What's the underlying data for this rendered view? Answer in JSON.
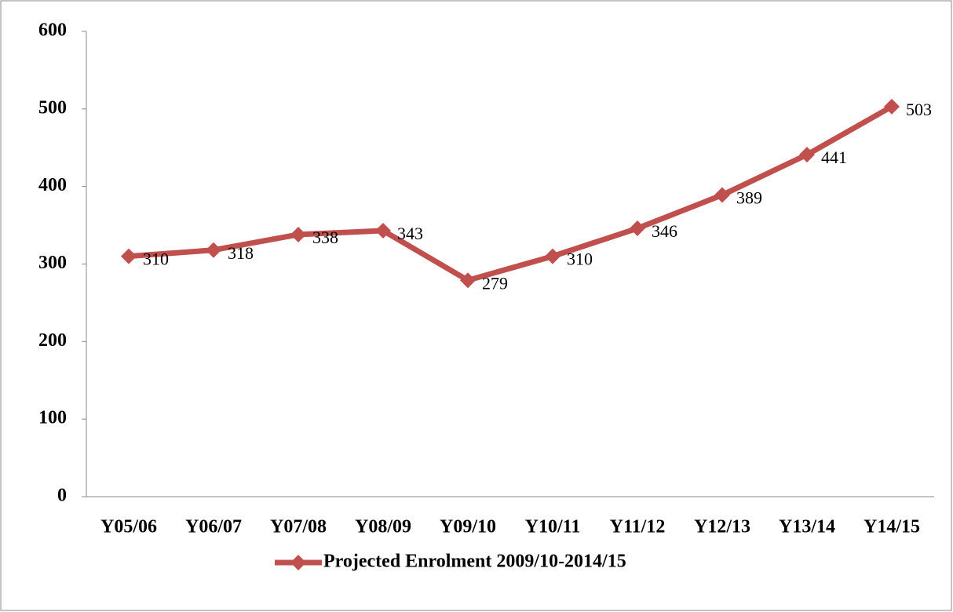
{
  "chart_data": {
    "type": "line",
    "categories": [
      "Y05/06",
      "Y06/07",
      "Y07/08",
      "Y08/09",
      "Y09/10",
      "Y10/11",
      "Y11/12",
      "Y12/13",
      "Y13/14",
      "Y14/15"
    ],
    "series": [
      {
        "name": "Projected Enrolment 2009/10-2014/15",
        "color": "#c0504d",
        "values": [
          310,
          318,
          338,
          343,
          279,
          310,
          346,
          389,
          441,
          503
        ]
      }
    ],
    "ylim": [
      0,
      600
    ],
    "yticks": [
      0,
      100,
      200,
      300,
      400,
      500,
      600
    ],
    "grid": false,
    "legend": "bottom"
  }
}
